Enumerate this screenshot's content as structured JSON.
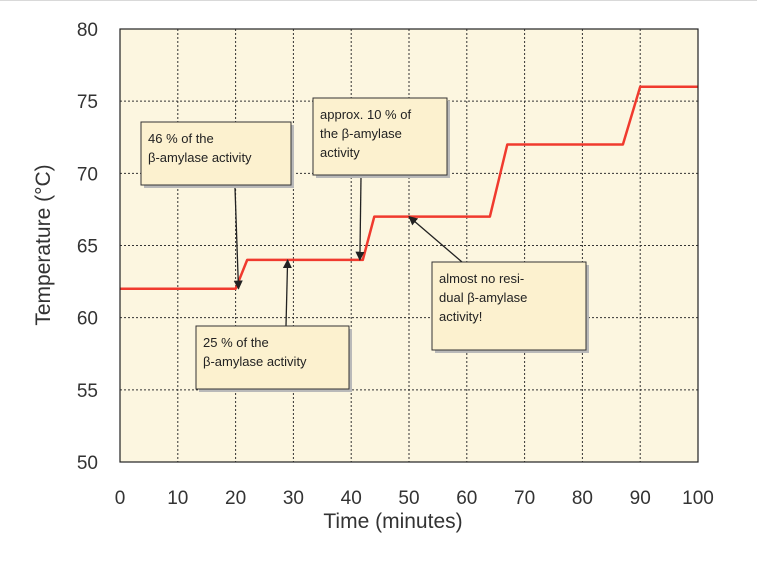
{
  "chart_data": {
    "type": "line",
    "title": "",
    "xlabel": "Time (minutes)",
    "ylabel": "Temperature (°C)",
    "xlim": [
      0,
      100
    ],
    "ylim": [
      50,
      80
    ],
    "x_ticks": [
      "0",
      "10",
      "20",
      "30",
      "40",
      "50",
      "60",
      "70",
      "80",
      "90",
      "100"
    ],
    "y_ticks": [
      "50",
      "55",
      "60",
      "65",
      "70",
      "75",
      "80"
    ],
    "grid": true,
    "series": [
      {
        "color": "#f03a2e",
        "points": [
          [
            0,
            62
          ],
          [
            20,
            62
          ],
          [
            22,
            64
          ],
          [
            42,
            64
          ],
          [
            44,
            67
          ],
          [
            64,
            67
          ],
          [
            67,
            72
          ],
          [
            87,
            72
          ],
          [
            90,
            76
          ],
          [
            100,
            76
          ]
        ]
      }
    ],
    "annotations": [
      {
        "lines": [
          "46 % of the",
          "β-amylase activity"
        ],
        "points_to": [
          20.5,
          62
        ]
      },
      {
        "lines": [
          "25 % of the",
          "β-amylase activity"
        ],
        "points_to": [
          29,
          64
        ]
      },
      {
        "lines": [
          "approx. 10 % of",
          "the β-amylase",
          "activity"
        ],
        "points_to": [
          41.5,
          64
        ]
      },
      {
        "lines": [
          "almost no resi-",
          "dual β-amylase",
          "activity!"
        ],
        "points_to": [
          50,
          67
        ]
      }
    ],
    "colors": {
      "line": "#f03a2e",
      "plot_background": "#fcf6e0",
      "note_background": "#fcf1cf"
    }
  }
}
